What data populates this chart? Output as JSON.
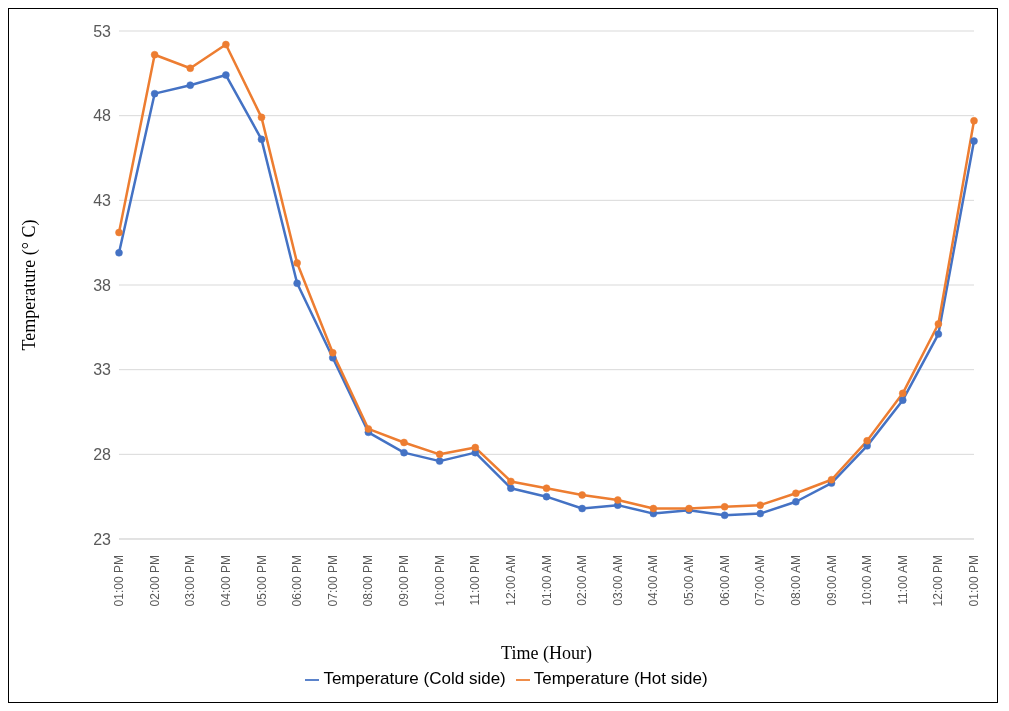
{
  "chart_data": {
    "type": "line",
    "xlabel": "Time (Hour)",
    "ylabel": "Temperature (° C)",
    "categories": [
      "01:00 PM",
      "02:00 PM",
      "03:00 PM",
      "04:00 PM",
      "05:00 PM",
      "06:00 PM",
      "07:00 PM",
      "08:00 PM",
      "09:00 PM",
      "10:00 PM",
      "11:00 PM",
      "12:00 AM",
      "01:00 AM",
      "02:00 AM",
      "03:00 AM",
      "04:00 AM",
      "05:00 AM",
      "06:00 AM",
      "07:00 AM",
      "08:00 AM",
      "09:00 AM",
      "10:00 AM",
      "11:00 AM",
      "12:00 PM",
      "01:00 PM"
    ],
    "series": [
      {
        "name": "Temperature (Cold side)",
        "color": "#4472c4",
        "values": [
          39.9,
          49.3,
          49.8,
          50.4,
          46.6,
          38.1,
          33.7,
          29.3,
          28.1,
          27.6,
          28.1,
          26.0,
          25.5,
          24.8,
          25.0,
          24.5,
          24.7,
          24.4,
          24.5,
          25.2,
          26.3,
          28.5,
          31.2,
          35.1,
          46.5
        ]
      },
      {
        "name": "Temperature (Hot side)",
        "color": "#ed7d31",
        "values": [
          41.1,
          51.6,
          50.8,
          52.2,
          47.9,
          39.3,
          34.0,
          29.5,
          28.7,
          28.0,
          28.4,
          26.4,
          26.0,
          25.6,
          25.3,
          24.8,
          24.8,
          24.9,
          25.0,
          25.7,
          26.5,
          28.8,
          31.6,
          35.7,
          47.7
        ]
      }
    ],
    "ylim": [
      23,
      53
    ],
    "yticks": [
      23,
      28,
      33,
      38,
      43,
      48,
      53
    ],
    "grid": "y",
    "legend": "bottom",
    "marker": "circle",
    "line_style": "solid"
  }
}
